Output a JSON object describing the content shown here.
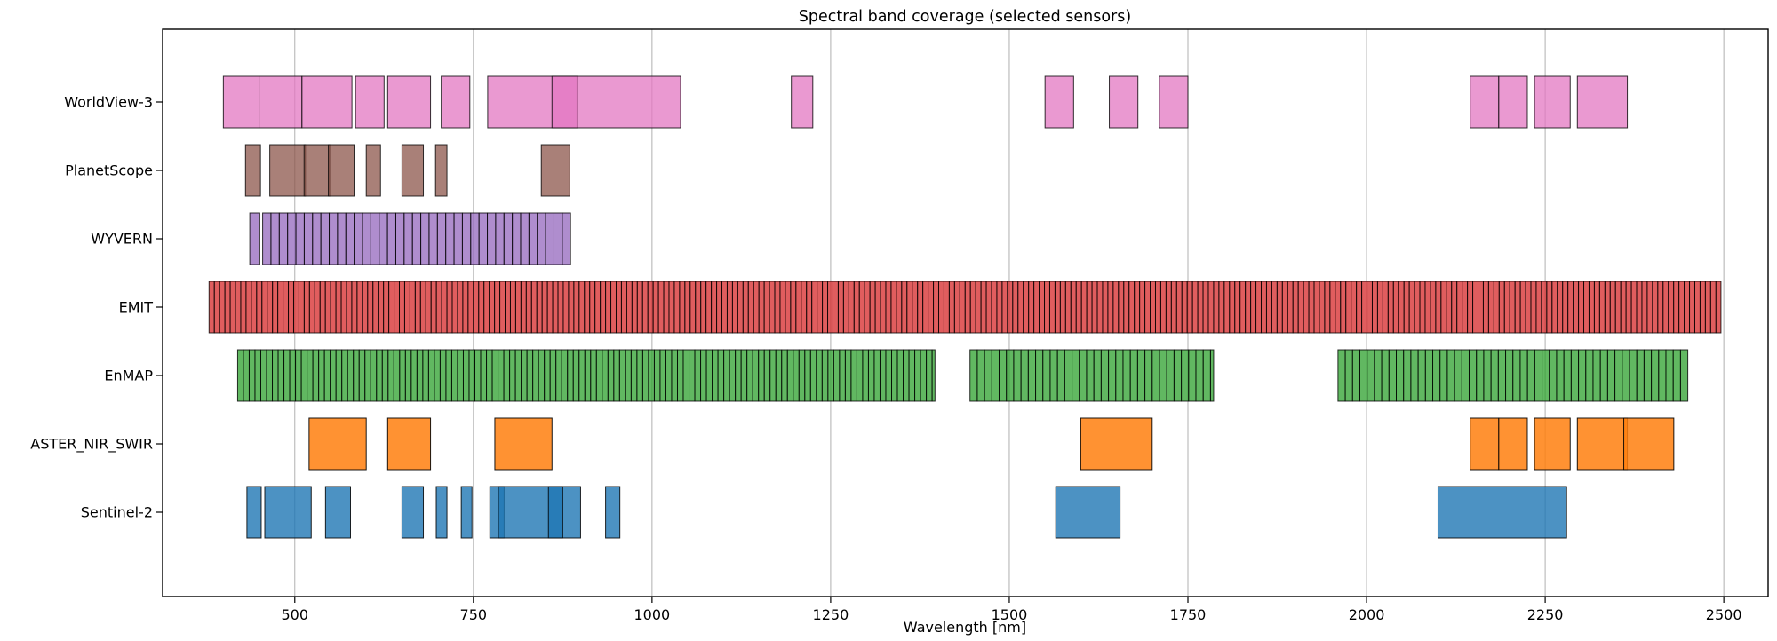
{
  "title": "Spectral band coverage (selected sensors)",
  "xlabel": "Wavelength [nm]",
  "axis": {
    "x_min_nm": 315,
    "x_max_nm": 2562,
    "tick_values": [
      500,
      750,
      1000,
      1250,
      1500,
      1750,
      2000,
      2250,
      2500
    ],
    "tick_labels": [
      "500",
      "750",
      "1000",
      "1250",
      "1500",
      "1750",
      "2000",
      "2250",
      "2500"
    ],
    "grid_color": "#b0b0b0",
    "spine_color": "#000000"
  },
  "chart_data": {
    "type": "bar",
    "subtype": "broken_barh_spectral_bands",
    "x_unit": "nm",
    "title": "Spectral band coverage (selected sensors)",
    "xlabel": "Wavelength [nm]",
    "xlim": [
      315,
      2562
    ],
    "grid": "vertical_on",
    "legend": "none",
    "categories": [
      "WorldView-3",
      "PlanetScope",
      "WYVERN",
      "EMIT",
      "EnMAP",
      "ASTER_NIR_SWIR",
      "Sentinel-2"
    ],
    "sensors": [
      {
        "name": "WorldView-3",
        "color": "#e377c2",
        "alpha": 0.75,
        "bands_nm": [
          [
            400,
            450
          ],
          [
            450,
            510
          ],
          [
            510,
            580
          ],
          [
            585,
            625
          ],
          [
            630,
            690
          ],
          [
            705,
            745
          ],
          [
            770,
            895
          ],
          [
            860,
            1040
          ],
          [
            1195,
            1225
          ],
          [
            1550,
            1590
          ],
          [
            1640,
            1680
          ],
          [
            1710,
            1750
          ],
          [
            2145,
            2185
          ],
          [
            2185,
            2225
          ],
          [
            2235,
            2285
          ],
          [
            2295,
            2365
          ]
        ],
        "band_segments": []
      },
      {
        "name": "PlanetScope",
        "color": "#8c564b",
        "alpha": 0.75,
        "bands_nm": [
          [
            431,
            452
          ],
          [
            465,
            515
          ],
          [
            513,
            549
          ],
          [
            547,
            583
          ],
          [
            600,
            620
          ],
          [
            650,
            680
          ],
          [
            697,
            713
          ],
          [
            845,
            885
          ]
        ],
        "band_segments": []
      },
      {
        "name": "WYVERN",
        "color": "#9467bd",
        "alpha": 0.75,
        "bands_nm": [
          [
            437,
            451
          ]
        ],
        "band_segments": [
          {
            "start_nm": 455,
            "end_nm": 886,
            "step_nm": 11.65
          }
        ]
      },
      {
        "name": "EMIT",
        "color": "#d62728",
        "alpha": 0.75,
        "bands_nm": [],
        "band_segments": [
          {
            "start_nm": 380,
            "end_nm": 2496,
            "step_nm": 7.4
          }
        ]
      },
      {
        "name": "EnMAP",
        "color": "#2ca02c",
        "alpha": 0.75,
        "bands_nm": [],
        "band_segments": [
          {
            "start_nm": 420,
            "end_nm": 1396,
            "step_nm": 8.1
          },
          {
            "start_nm": 1445,
            "end_nm": 1786,
            "step_nm": 10.2
          },
          {
            "start_nm": 1960,
            "end_nm": 2450,
            "step_nm": 10.2
          }
        ]
      },
      {
        "name": "ASTER_NIR_SWIR",
        "color": "#ff7f0e",
        "alpha": 0.85,
        "bands_nm": [
          [
            520,
            600
          ],
          [
            630,
            690
          ],
          [
            780,
            860
          ],
          [
            1600,
            1700
          ],
          [
            2145,
            2185
          ],
          [
            2185,
            2225
          ],
          [
            2235,
            2285
          ],
          [
            2295,
            2365
          ],
          [
            2360,
            2430
          ]
        ],
        "band_segments": []
      },
      {
        "name": "Sentinel-2",
        "color": "#1f77b4",
        "alpha": 0.8,
        "bands_nm": [
          [
            433,
            453
          ],
          [
            458,
            523
          ],
          [
            543,
            578
          ],
          [
            650,
            680
          ],
          [
            698,
            713
          ],
          [
            733,
            748
          ],
          [
            773,
            793
          ],
          [
            785,
            900
          ],
          [
            855,
            875
          ],
          [
            935,
            955
          ],
          [
            1565,
            1655
          ],
          [
            2100,
            2280
          ]
        ],
        "band_segments": []
      }
    ]
  }
}
